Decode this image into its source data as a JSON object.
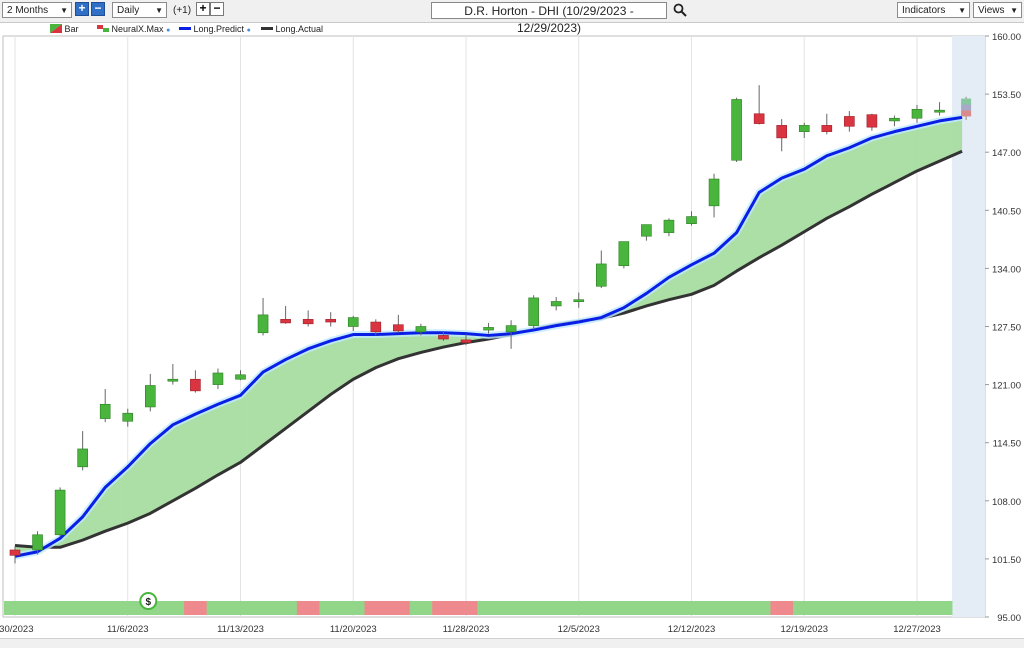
{
  "toolbar": {
    "period": "2 Months",
    "interval": "Daily",
    "offset": "(+1)",
    "title": "D.R. Horton - DHI (10/29/2023 - 12/29/2023)",
    "indicators": "Indicators",
    "views": "Views",
    "plus_icon": "plus-icon",
    "minus_icon": "minus-icon",
    "search_icon": "search-icon"
  },
  "legend": [
    {
      "label": "Bar",
      "icon": "bar-icon"
    },
    {
      "label": "NeuralX.Max",
      "icon": "neuralx-icon"
    },
    {
      "label": "Long.Predict",
      "color": "#0a1fe6"
    },
    {
      "label": "Long.Actual",
      "color": "#333333"
    }
  ],
  "chart_data": {
    "type": "candlestick",
    "y_ticks": [
      "160.00",
      "153.50",
      "147.00",
      "140.50",
      "134.00",
      "127.50",
      "121.00",
      "114.50",
      "108.00",
      "101.50",
      "95.00"
    ],
    "ylim": [
      95,
      160
    ],
    "x_tick_labels": [
      {
        "label": "/30/2023",
        "index": 0
      },
      {
        "label": "11/6/2023",
        "index": 5
      },
      {
        "label": "11/13/2023",
        "index": 10
      },
      {
        "label": "11/20/2023",
        "index": 15
      },
      {
        "label": "11/28/2023",
        "index": 20
      },
      {
        "label": "12/5/2023",
        "index": 25
      },
      {
        "label": "12/12/2023",
        "index": 30
      },
      {
        "label": "12/19/2023",
        "index": 35
      },
      {
        "label": "12/27/2023",
        "index": 40
      }
    ],
    "candles": [
      {
        "o": 102.5,
        "h": 102.9,
        "l": 101.0,
        "c": 101.9
      },
      {
        "o": 102.5,
        "h": 104.6,
        "l": 102.0,
        "c": 104.2
      },
      {
        "o": 104.2,
        "h": 109.5,
        "l": 104.0,
        "c": 109.2
      },
      {
        "o": 111.8,
        "h": 115.8,
        "l": 111.4,
        "c": 113.8
      },
      {
        "o": 117.2,
        "h": 120.5,
        "l": 116.8,
        "c": 118.8
      },
      {
        "o": 116.9,
        "h": 118.3,
        "l": 116.3,
        "c": 117.8
      },
      {
        "o": 118.5,
        "h": 122.2,
        "l": 118.0,
        "c": 120.9
      },
      {
        "o": 121.5,
        "h": 123.3,
        "l": 121.0,
        "c": 121.6
      },
      {
        "o": 121.6,
        "h": 122.6,
        "l": 120.1,
        "c": 120.3
      },
      {
        "o": 121.0,
        "h": 122.8,
        "l": 120.5,
        "c": 122.3
      },
      {
        "o": 121.6,
        "h": 122.6,
        "l": 121.5,
        "c": 122.1
      },
      {
        "o": 126.8,
        "h": 130.7,
        "l": 126.5,
        "c": 128.8
      },
      {
        "o": 128.3,
        "h": 129.8,
        "l": 127.8,
        "c": 127.9
      },
      {
        "o": 128.3,
        "h": 129.3,
        "l": 127.5,
        "c": 127.8
      },
      {
        "o": 128.3,
        "h": 129.1,
        "l": 127.5,
        "c": 128.0
      },
      {
        "o": 127.5,
        "h": 128.7,
        "l": 127.0,
        "c": 128.5
      },
      {
        "o": 128.0,
        "h": 128.3,
        "l": 126.5,
        "c": 126.9
      },
      {
        "o": 127.7,
        "h": 128.8,
        "l": 126.8,
        "c": 127.0
      },
      {
        "o": 126.9,
        "h": 127.8,
        "l": 126.5,
        "c": 127.5
      },
      {
        "o": 126.5,
        "h": 126.9,
        "l": 125.9,
        "c": 126.1
      },
      {
        "o": 126.0,
        "h": 126.6,
        "l": 125.4,
        "c": 125.7
      },
      {
        "o": 127.1,
        "h": 127.9,
        "l": 126.7,
        "c": 127.4
      },
      {
        "o": 126.9,
        "h": 128.2,
        "l": 125.0,
        "c": 127.6
      },
      {
        "o": 127.6,
        "h": 131.0,
        "l": 127.2,
        "c": 130.7
      },
      {
        "o": 129.8,
        "h": 130.8,
        "l": 129.3,
        "c": 130.3
      },
      {
        "o": 130.3,
        "h": 131.3,
        "l": 129.6,
        "c": 130.5
      },
      {
        "o": 132.0,
        "h": 136.0,
        "l": 131.8,
        "c": 134.5
      },
      {
        "o": 134.3,
        "h": 137.0,
        "l": 134.0,
        "c": 137.0
      },
      {
        "o": 137.6,
        "h": 138.9,
        "l": 137.1,
        "c": 138.9
      },
      {
        "o": 138.0,
        "h": 139.6,
        "l": 137.6,
        "c": 139.4
      },
      {
        "o": 139.0,
        "h": 140.4,
        "l": 138.8,
        "c": 139.8
      },
      {
        "o": 141.0,
        "h": 144.6,
        "l": 139.7,
        "c": 144.0
      },
      {
        "o": 146.1,
        "h": 153.1,
        "l": 145.9,
        "c": 152.9
      },
      {
        "o": 151.3,
        "h": 154.5,
        "l": 150.1,
        "c": 150.2
      },
      {
        "o": 150.0,
        "h": 150.7,
        "l": 147.1,
        "c": 148.6
      },
      {
        "o": 149.3,
        "h": 150.3,
        "l": 148.6,
        "c": 150.0
      },
      {
        "o": 150.0,
        "h": 151.3,
        "l": 149.0,
        "c": 149.3
      },
      {
        "o": 151.0,
        "h": 151.6,
        "l": 149.3,
        "c": 149.9
      },
      {
        "o": 151.2,
        "h": 151.3,
        "l": 149.4,
        "c": 149.8
      },
      {
        "o": 150.5,
        "h": 151.1,
        "l": 149.9,
        "c": 150.8
      },
      {
        "o": 150.8,
        "h": 152.3,
        "l": 150.3,
        "c": 151.8
      },
      {
        "o": 151.5,
        "h": 152.6,
        "l": 151.1,
        "c": 151.7
      }
    ],
    "forecast_candle": {
      "o": 151.0,
      "h": 153.2,
      "l": 150.6,
      "c": 153.0
    },
    "long_predict": [
      101.8,
      102.3,
      103.8,
      106.2,
      109.5,
      111.8,
      114.4,
      116.5,
      117.7,
      118.8,
      119.8,
      122.4,
      123.8,
      125.0,
      125.9,
      126.6,
      126.6,
      126.7,
      126.8,
      126.8,
      126.7,
      126.5,
      126.7,
      127.1,
      127.6,
      128.0,
      128.5,
      129.6,
      131.2,
      133.0,
      134.4,
      135.7,
      138.0,
      142.5,
      144.1,
      145.1,
      146.6,
      147.5,
      148.6,
      149.3,
      149.9,
      150.5,
      150.9
    ],
    "long_actual": [
      103.0,
      102.8,
      102.8,
      103.6,
      104.6,
      105.5,
      106.6,
      108.0,
      109.4,
      110.9,
      112.3,
      114.2,
      116.1,
      118.0,
      119.9,
      121.6,
      122.9,
      123.9,
      124.6,
      125.2,
      125.7,
      126.1,
      126.6,
      127.2,
      127.7,
      128.1,
      128.4,
      129.0,
      129.8,
      130.5,
      131.1,
      132.1,
      133.7,
      135.2,
      136.6,
      138.1,
      139.6,
      140.9,
      142.3,
      143.6,
      144.9,
      146.0,
      147.1
    ],
    "neuralx_strip": [
      "g",
      "g",
      "g",
      "g",
      "g",
      "g",
      "g",
      "g",
      "r",
      "g",
      "g",
      "g",
      "g",
      "r",
      "g",
      "g",
      "r",
      "r",
      "g",
      "r",
      "r",
      "g",
      "g",
      "g",
      "g",
      "g",
      "g",
      "g",
      "g",
      "g",
      "g",
      "g",
      "g",
      "g",
      "r",
      "g",
      "g",
      "g",
      "g",
      "g",
      "g",
      "g"
    ],
    "signal_marker": {
      "index": 6,
      "label": "$"
    },
    "colors": {
      "up": "#49b53c",
      "down": "#d9343f",
      "predict": "#0a1fe6",
      "actual": "#333333",
      "fill": "#a6dda1",
      "strip_green": "#92d68a",
      "strip_red": "#ee8a8d",
      "forecast_bg": "#e4ecf6"
    }
  }
}
